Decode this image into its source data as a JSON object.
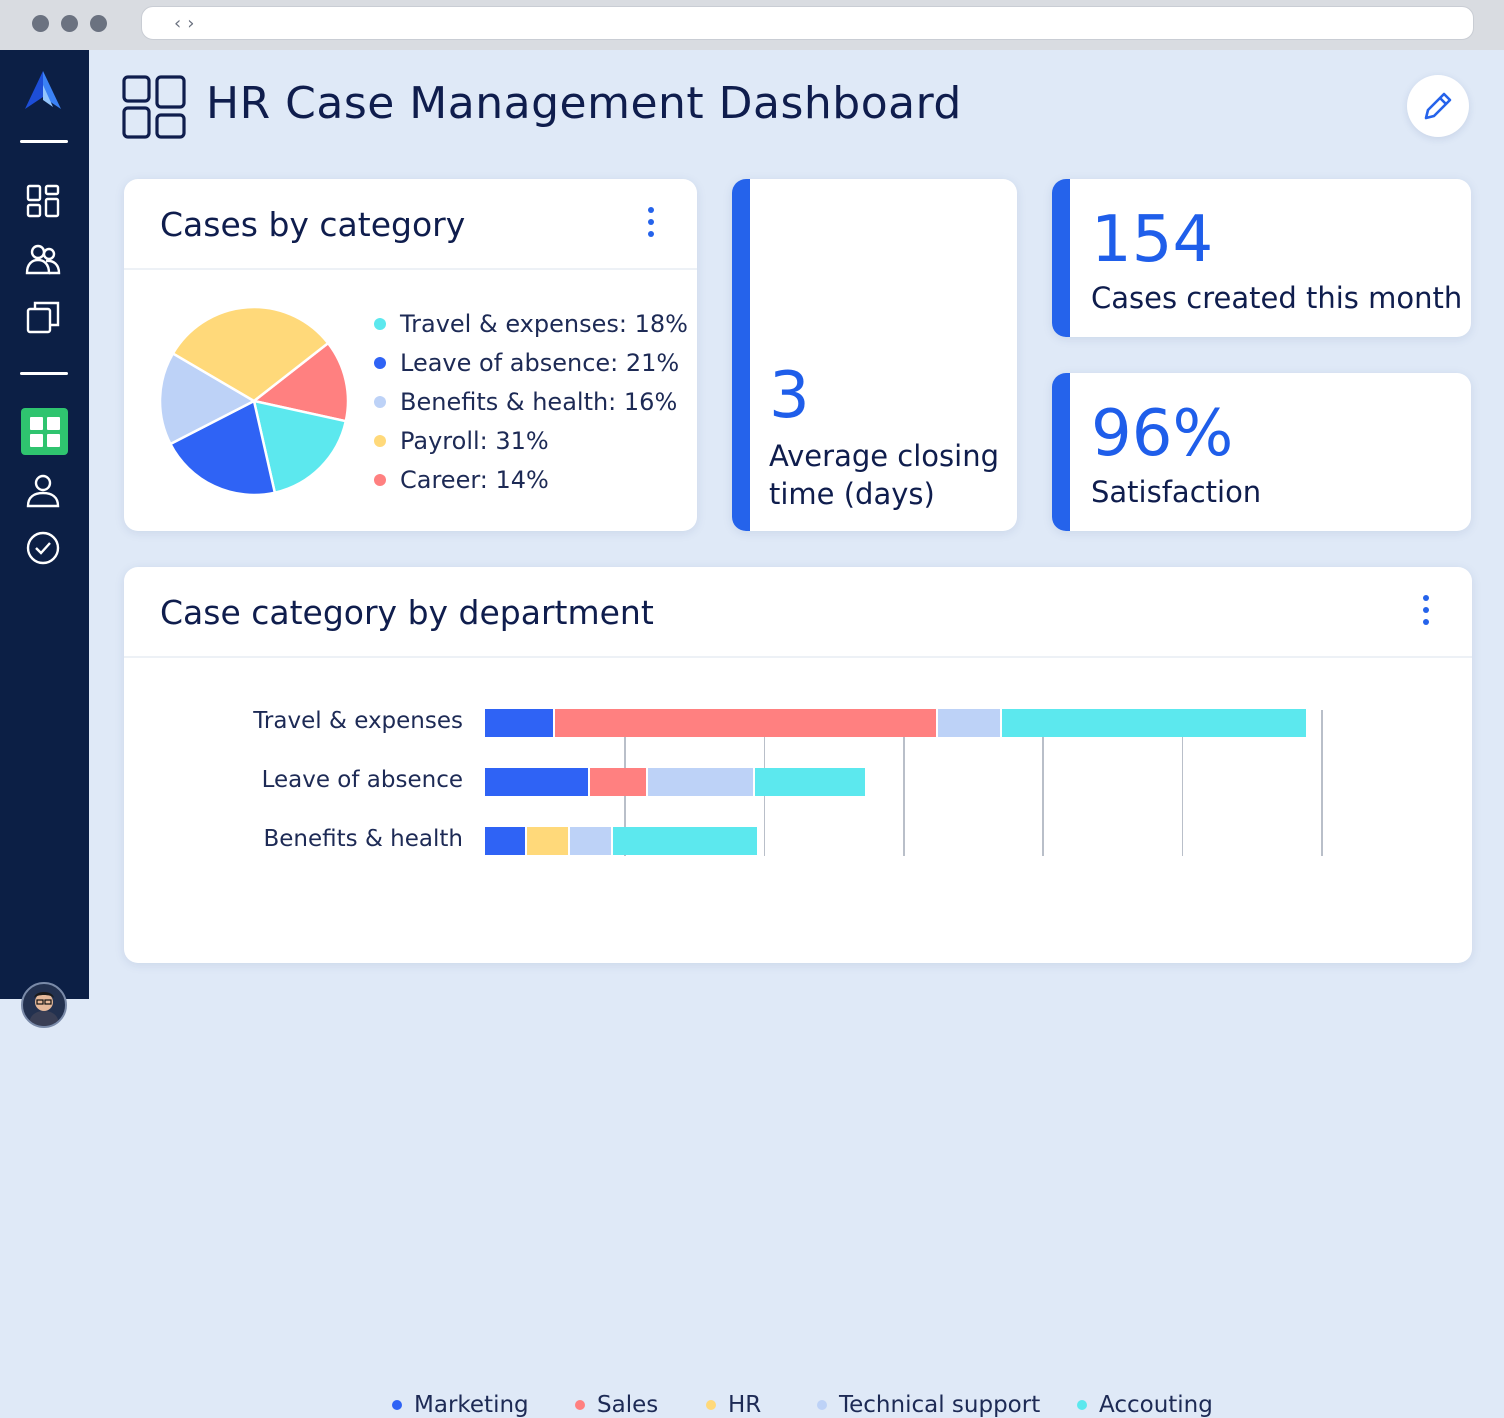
{
  "page": {
    "title": "HR Case Management Dashboard"
  },
  "sidebar": {
    "items": [
      {
        "name": "dashboard-grid-icon"
      },
      {
        "name": "users-icon"
      },
      {
        "name": "folders-icon"
      },
      {
        "name": "widgets-icon",
        "active": true
      },
      {
        "name": "person-icon"
      },
      {
        "name": "check-circle-icon"
      }
    ]
  },
  "cases_by_category": {
    "title": "Cases by category",
    "legend": [
      {
        "label": "Travel & expenses: 18%",
        "color": "#5ce8ee"
      },
      {
        "label": "Leave of absence: 21%",
        "color": "#2f63f5"
      },
      {
        "label": "Benefits & health: 16%",
        "color": "#bdd2f7"
      },
      {
        "label": "Payroll: 31%",
        "color": "#ffd97a"
      },
      {
        "label": "Career: 14%",
        "color": "#ff8080"
      }
    ]
  },
  "kpis": {
    "closing": {
      "value": "3",
      "label_line1": "Average closing",
      "label_line2": "time (days)"
    },
    "created": {
      "value": "154",
      "label": "Cases created this month"
    },
    "satisfaction": {
      "value": "96%",
      "label": "Satisfaction"
    }
  },
  "department_chart": {
    "title": "Case category by department",
    "legend": [
      {
        "label": "Marketing",
        "color": "#2f63f5"
      },
      {
        "label": "Sales",
        "color": "#ff8080"
      },
      {
        "label": "HR",
        "color": "#ffd97a"
      },
      {
        "label": "Technical support",
        "color": "#bdd2f7"
      },
      {
        "label": "Accouting",
        "color": "#5ce8ee"
      }
    ]
  },
  "chart_data": [
    {
      "type": "pie",
      "title": "Cases by category",
      "categories": [
        "Travel & expenses",
        "Leave of absence",
        "Benefits & health",
        "Payroll",
        "Career"
      ],
      "values": [
        18,
        21,
        16,
        31,
        14
      ],
      "colors": [
        "#5ce8ee",
        "#2f63f5",
        "#bdd2f7",
        "#ffd97a",
        "#ff8080"
      ]
    },
    {
      "type": "bar",
      "orientation": "horizontal",
      "stacked": true,
      "title": "Case category by department",
      "categories": [
        "Travel & expenses",
        "Leave of absence",
        "Benefits & health"
      ],
      "series": [
        {
          "name": "Marketing",
          "color": "#2f63f5",
          "values": [
            5,
            7.5,
            3
          ]
        },
        {
          "name": "Sales",
          "color": "#ff8080",
          "values": [
            27.5,
            4.2,
            0
          ]
        },
        {
          "name": "HR",
          "color": "#ffd97a",
          "values": [
            0,
            0,
            3.1
          ]
        },
        {
          "name": "Technical support",
          "color": "#bdd2f7",
          "values": [
            4.6,
            7.7,
            3.1
          ]
        },
        {
          "name": "Accouting",
          "color": "#5ce8ee",
          "values": [
            22,
            8,
            10.5
          ]
        }
      ],
      "xlim": [
        0,
        60
      ],
      "grid": true,
      "legend_position": "bottom"
    }
  ]
}
